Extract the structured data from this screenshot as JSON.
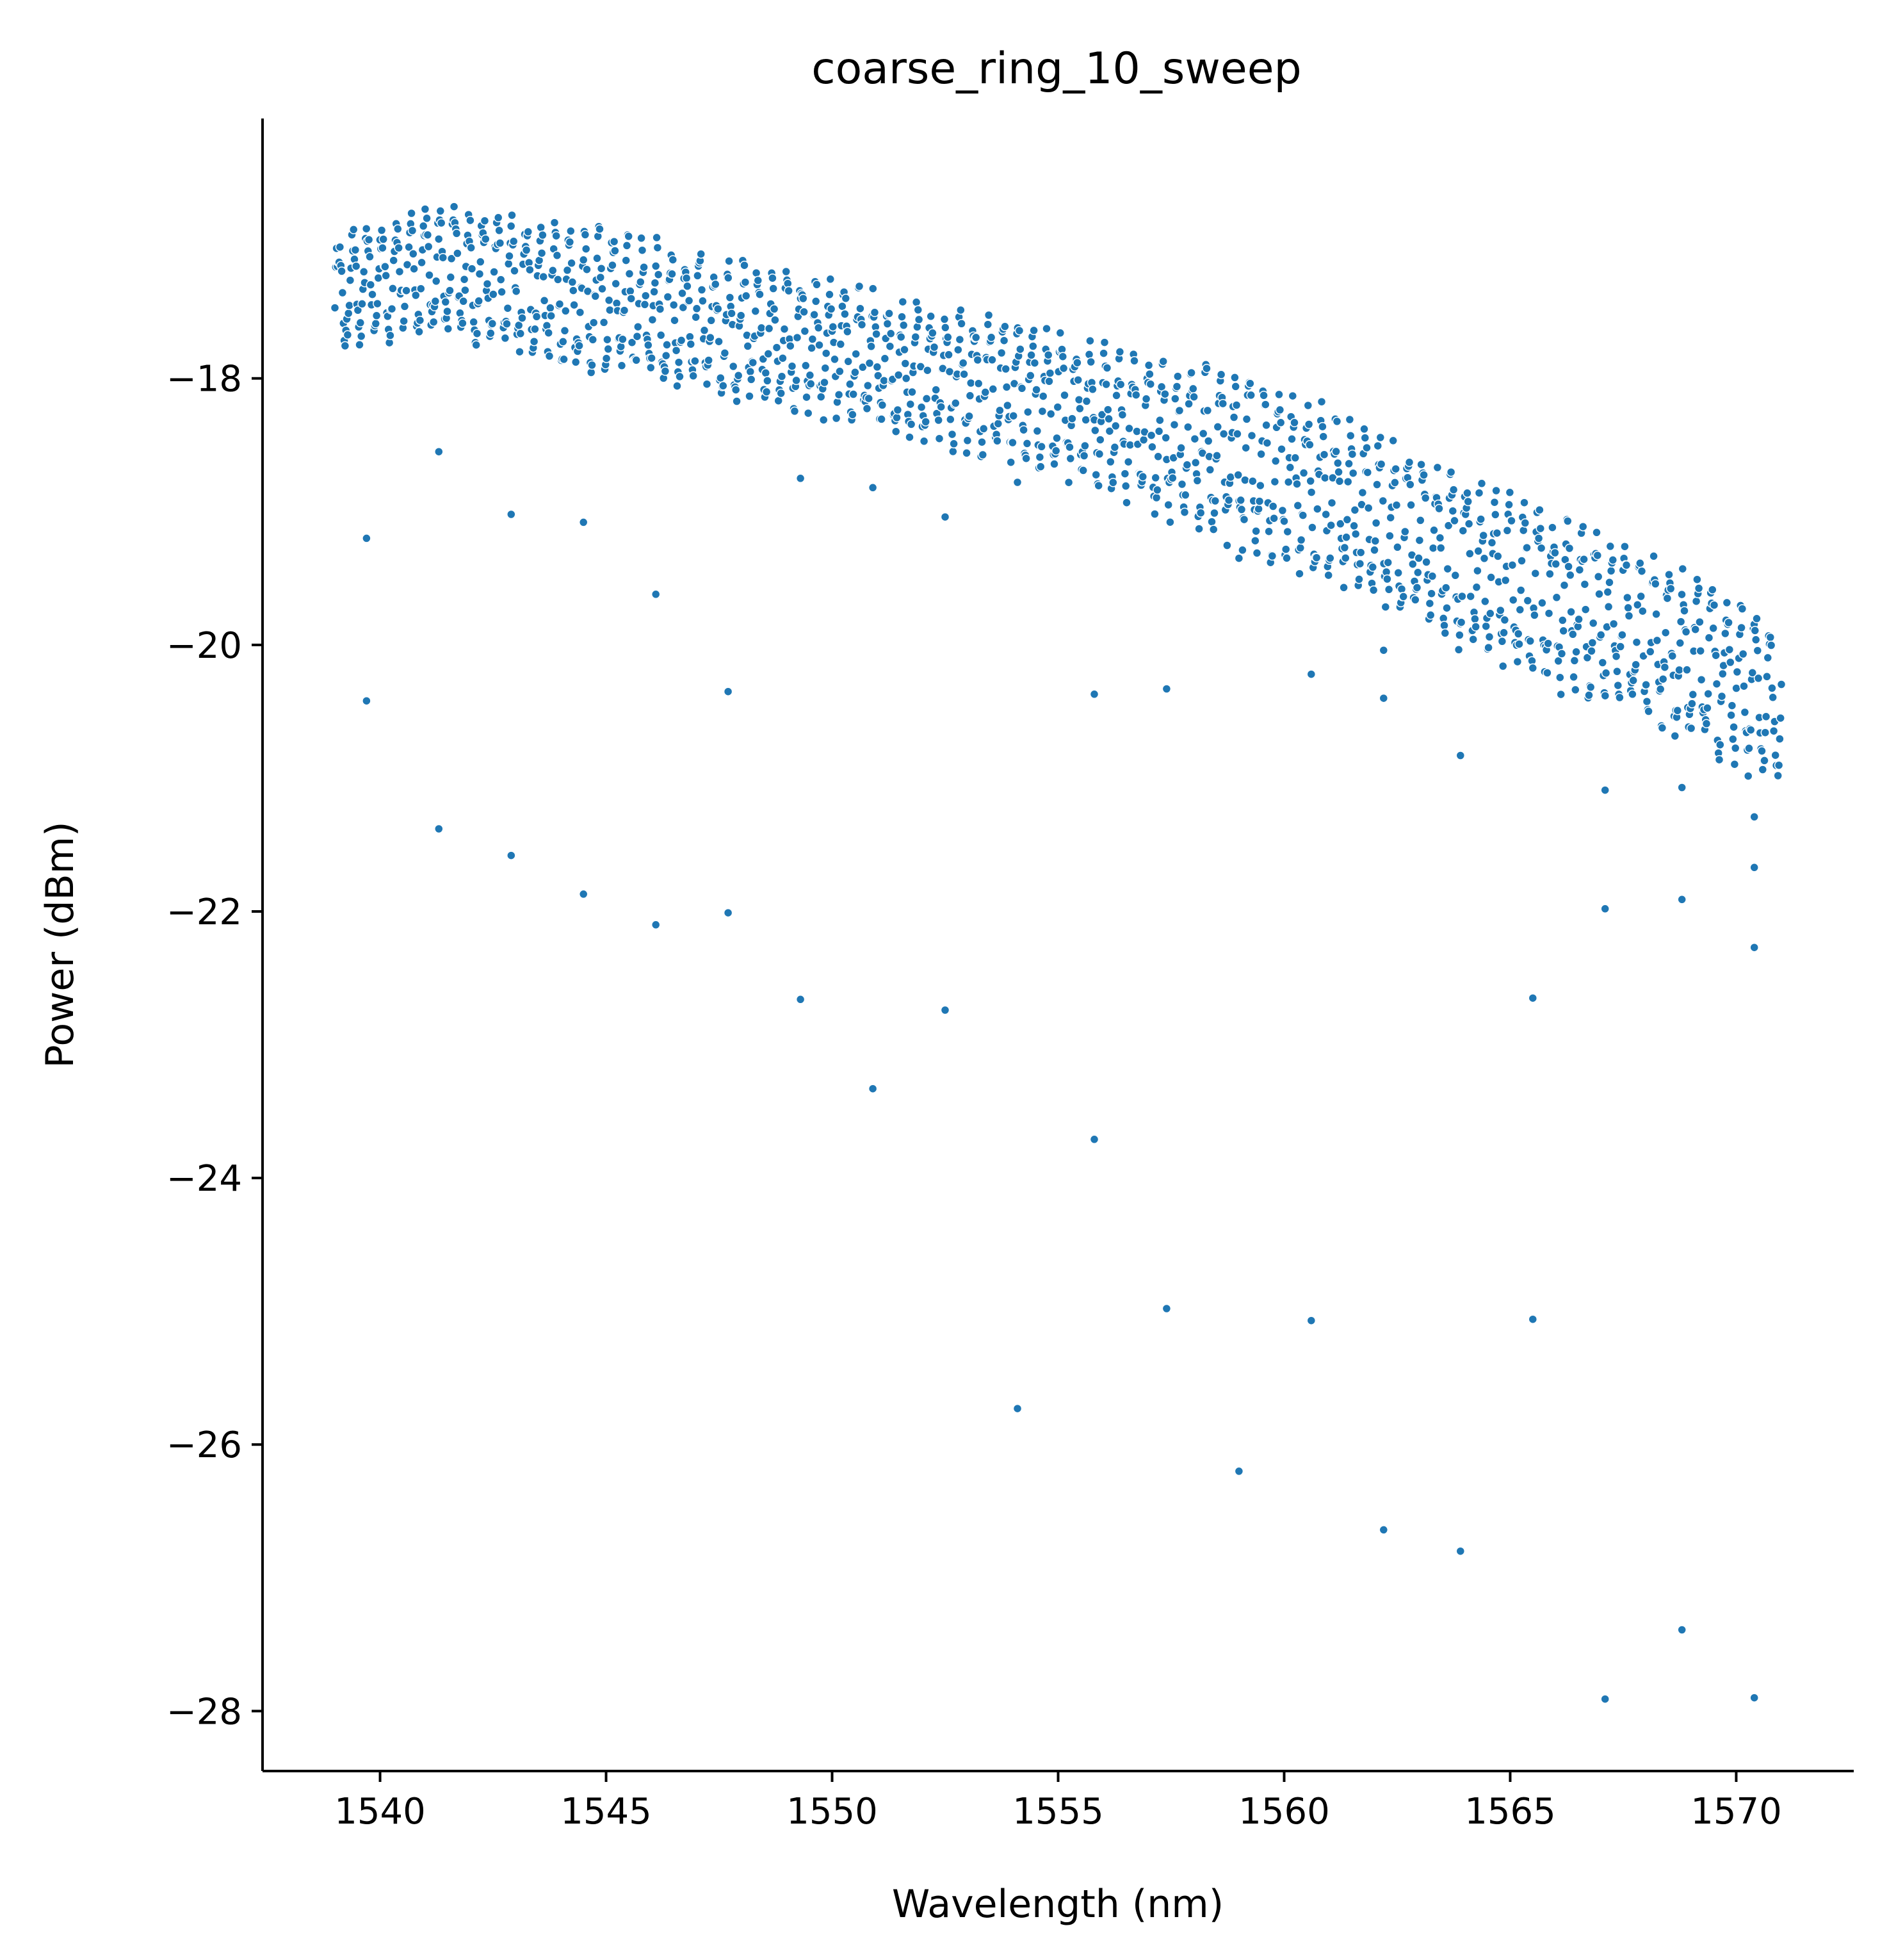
{
  "chart_data": {
    "type": "scatter",
    "title": "coarse_ring_10_sweep",
    "xlabel": "Wavelength (nm)",
    "ylabel": "Power (dBm)",
    "xlim": [
      1537.4,
      1572.6
    ],
    "ylim": [
      -28.45,
      -16.05
    ],
    "xticks": [
      1540,
      1545,
      1550,
      1555,
      1560,
      1565,
      1570
    ],
    "xtick_labels": [
      "1540",
      "1545",
      "1550",
      "1555",
      "1560",
      "1565",
      "1570"
    ],
    "yticks": [
      -18,
      -20,
      -22,
      -24,
      -26,
      -28
    ],
    "ytick_labels": [
      "−18",
      "−20",
      "−22",
      "−24",
      "−26",
      "−28"
    ],
    "grid": false,
    "legend": "none",
    "colors": {
      "marker": "#1f77b4",
      "marker_edge": "#ffffff",
      "axis": "#000000"
    },
    "band": {
      "description": "dense main band, upper and lower edge envelope",
      "x": [
        1539.0,
        1541.0,
        1545.0,
        1550.0,
        1555.0,
        1560.0,
        1565.0,
        1570.0,
        1571.0
      ],
      "upper": [
        -16.9,
        -16.65,
        -16.85,
        -17.25,
        -17.6,
        -18.05,
        -18.8,
        -19.55,
        -19.85
      ],
      "lower": [
        -17.85,
        -17.7,
        -18.0,
        -18.35,
        -18.75,
        -19.45,
        -20.25,
        -20.95,
        -21.15
      ],
      "n_points": 1700
    },
    "series": [
      {
        "values_outliers": [
          [
            1539.7,
            -19.2
          ],
          [
            1539.7,
            -20.42
          ],
          [
            1541.3,
            -18.55
          ],
          [
            1541.3,
            -21.38
          ],
          [
            1542.9,
            -19.02
          ],
          [
            1542.9,
            -21.58
          ],
          [
            1544.5,
            -19.08
          ],
          [
            1544.5,
            -21.87
          ],
          [
            1546.1,
            -19.62
          ],
          [
            1546.1,
            -22.1
          ],
          [
            1547.7,
            -20.35
          ],
          [
            1547.7,
            -22.01
          ],
          [
            1549.3,
            -18.75
          ],
          [
            1549.3,
            -22.66
          ],
          [
            1550.9,
            -18.82
          ],
          [
            1550.9,
            -23.33
          ],
          [
            1552.5,
            -19.04
          ],
          [
            1552.5,
            -22.74
          ],
          [
            1554.1,
            -18.78
          ],
          [
            1554.1,
            -25.73
          ],
          [
            1555.8,
            -20.37
          ],
          [
            1555.8,
            -23.71
          ],
          [
            1557.4,
            -20.33
          ],
          [
            1557.4,
            -24.98
          ],
          [
            1559.0,
            -19.35
          ],
          [
            1559.0,
            -26.2
          ],
          [
            1560.6,
            -20.22
          ],
          [
            1560.6,
            -25.07
          ],
          [
            1562.2,
            -20.04
          ],
          [
            1562.2,
            -20.4
          ],
          [
            1562.2,
            -26.64
          ],
          [
            1563.9,
            -20.83
          ],
          [
            1563.9,
            -26.8
          ],
          [
            1565.5,
            -22.65
          ],
          [
            1565.5,
            -25.06
          ],
          [
            1567.1,
            -21.09
          ],
          [
            1567.1,
            -21.98
          ],
          [
            1567.1,
            -27.91
          ],
          [
            1568.8,
            -21.07
          ],
          [
            1568.8,
            -21.91
          ],
          [
            1568.8,
            -27.39
          ],
          [
            1570.4,
            -21.29
          ],
          [
            1570.4,
            -21.67
          ],
          [
            1570.4,
            -22.27
          ],
          [
            1570.4,
            -27.9
          ]
        ]
      }
    ]
  }
}
